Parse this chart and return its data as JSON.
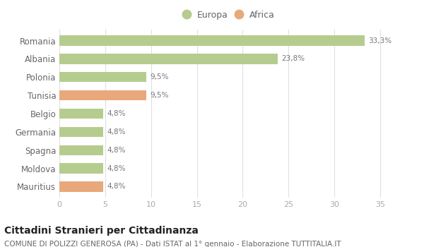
{
  "categories": [
    "Romania",
    "Albania",
    "Polonia",
    "Tunisia",
    "Belgio",
    "Germania",
    "Spagna",
    "Moldova",
    "Mauritius"
  ],
  "values": [
    33.3,
    23.8,
    9.5,
    9.5,
    4.8,
    4.8,
    4.8,
    4.8,
    4.8
  ],
  "labels": [
    "33,3%",
    "23,8%",
    "9,5%",
    "9,5%",
    "4,8%",
    "4,8%",
    "4,8%",
    "4,8%",
    "4,8%"
  ],
  "colors": [
    "#b5cc8e",
    "#b5cc8e",
    "#b5cc8e",
    "#e8a87c",
    "#b5cc8e",
    "#b5cc8e",
    "#b5cc8e",
    "#b5cc8e",
    "#e8a87c"
  ],
  "europa_color": "#b5cc8e",
  "africa_color": "#e8a87c",
  "xlim": [
    0,
    37
  ],
  "xticks": [
    0,
    5,
    10,
    15,
    20,
    25,
    30,
    35
  ],
  "title": "Cittadini Stranieri per Cittadinanza",
  "subtitle": "COMUNE DI POLIZZI GENEROSA (PA) - Dati ISTAT al 1° gennaio - Elaborazione TUTTITALIA.IT",
  "bg_color": "#ffffff",
  "grid_color": "#e0e0e0",
  "bar_height": 0.55,
  "label_fontsize": 7.5,
  "title_fontsize": 10,
  "subtitle_fontsize": 7.5,
  "ytick_fontsize": 8.5,
  "xtick_fontsize": 8
}
